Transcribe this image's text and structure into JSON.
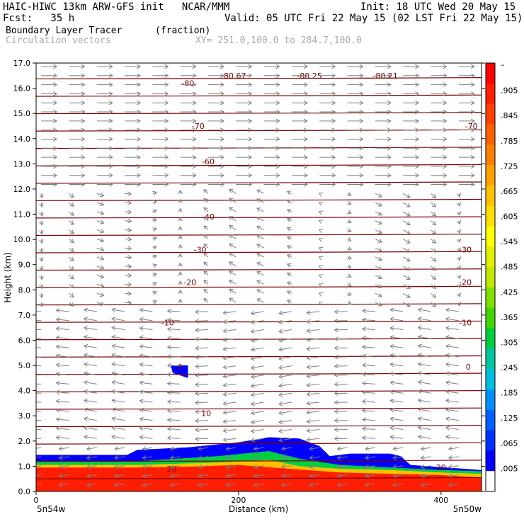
{
  "header": {
    "line1_left": "HAIC-HIWC 13km ARW-GFS init   NCAR/MMM",
    "line1_right": "Init: 18 UTC Wed 20 May 15",
    "line2_left": "Fcst:   35 h",
    "line2_right": "Valid: 05 UTC Fri 22 May 15 (02 LST Fri 22 May 15)",
    "field_name": "Boundary Layer Tracer",
    "field_units": "(fraction)",
    "vector_label": "Circulation vectors",
    "xsec_coords": "XY= 251.0,100.0 to 284.7,100.0"
  },
  "colors": {
    "contour": "#7a0000",
    "vector": "#808080",
    "background": "#ffffff",
    "colorbar": [
      "#ff0000",
      "#ff1e00",
      "#ff4000",
      "#ff6000",
      "#ff8000",
      "#ffa000",
      "#ffc000",
      "#ffe000",
      "#ffff00",
      "#e0f000",
      "#c0e800",
      "#80e000",
      "#40d800",
      "#00d040",
      "#00c8a0",
      "#00c0e0",
      "#0090ff",
      "#0060ff",
      "#0030ff",
      "#0000ff",
      "#ffffff"
    ]
  },
  "chart_data": {
    "type": "heatmap",
    "title": "Boundary Layer Tracer",
    "units": "(fraction)",
    "xlabel": "Distance (km)",
    "ylabel": "Height (km)",
    "xlim": [
      0,
      440
    ],
    "ylim": [
      0,
      17
    ],
    "x_ticks": [
      "0",
      "200",
      "400"
    ],
    "y_ticks": [
      "0.0",
      "1.0",
      "2.0",
      "3.0",
      "4.0",
      "5.0",
      "6.0",
      "7.0",
      "8.0",
      "9.0",
      "10.0",
      "11.0",
      "12.0",
      "13.0",
      "14.0",
      "15.0",
      "16.0",
      "17.0"
    ],
    "x_end_labels": [
      "5n54w",
      "5n50w"
    ],
    "colorbar_labels": [
      ".005",
      ".065",
      ".125",
      ".185",
      ".245",
      ".305",
      ".365",
      ".425",
      ".485",
      ".545",
      ".605",
      ".665",
      ".725",
      ".785",
      ".845",
      ".905"
    ],
    "colorbar_top_label": "–",
    "tracer_regions": [
      {
        "value": 0.95,
        "x": [
          0,
          50,
          100,
          150,
          200,
          250,
          300,
          350,
          400,
          440
        ],
        "top_km": [
          0.95,
          0.95,
          0.95,
          0.98,
          1.05,
          0.9,
          0.75,
          0.7,
          0.65,
          0.55
        ]
      },
      {
        "value": 0.7,
        "x": [
          0,
          100,
          180,
          230,
          260,
          300,
          350,
          400,
          440
        ],
        "top_km": [
          1.05,
          1.05,
          1.15,
          1.25,
          1.0,
          0.9,
          0.85,
          0.75,
          0.7
        ]
      },
      {
        "value": 0.35,
        "x": [
          0,
          100,
          180,
          230,
          260,
          300,
          350,
          400,
          440
        ],
        "top_km": [
          1.2,
          1.2,
          1.4,
          1.6,
          1.3,
          1.05,
          0.95,
          0.85,
          0.8
        ]
      },
      {
        "value": 0.05,
        "x": [
          0,
          90,
          100,
          150,
          200,
          230,
          260,
          280,
          290,
          310,
          350,
          360,
          370,
          440
        ],
        "top_km": [
          1.45,
          1.45,
          1.65,
          1.75,
          1.95,
          2.15,
          2.1,
          1.8,
          1.4,
          1.5,
          1.5,
          1.4,
          1.05,
          0.85
        ]
      }
    ],
    "tracer_blob": {
      "value": 0.02,
      "x_km": [
        133,
        150
      ],
      "z_km": [
        4.5,
        5.0
      ]
    },
    "temperature_contours": [
      {
        "label": "20",
        "x_km": 134,
        "z_km": 0.9
      },
      {
        "label": "20",
        "x_km": 400,
        "z_km": 0.95
      },
      {
        "label": "10",
        "x_km": 168,
        "z_km": 3.1
      },
      {
        "label": "0",
        "x_km": 142,
        "z_km": 4.95
      },
      {
        "label": "0",
        "x_km": 427,
        "z_km": 4.95
      },
      {
        "label": "-10",
        "x_km": 130,
        "z_km": 6.7
      },
      {
        "label": "-10",
        "x_km": 424,
        "z_km": 6.7
      },
      {
        "label": "-20",
        "x_km": 152,
        "z_km": 8.3
      },
      {
        "label": "-20",
        "x_km": 424,
        "z_km": 8.3
      },
      {
        "label": "-30",
        "x_km": 162,
        "z_km": 9.6
      },
      {
        "label": "-30",
        "x_km": 424,
        "z_km": 9.6
      },
      {
        "label": "-40",
        "x_km": 170,
        "z_km": 10.9
      },
      {
        "label": "-60",
        "x_km": 170,
        "z_km": 13.1
      },
      {
        "label": "-70",
        "x_km": 160,
        "z_km": 14.5
      },
      {
        "label": "-70",
        "x_km": 430,
        "z_km": 14.5
      },
      {
        "label": "-80",
        "x_km": 150,
        "z_km": 16.2
      },
      {
        "label": "-80.67",
        "x_km": 195,
        "z_km": 16.5
      },
      {
        "label": "-80.25",
        "x_km": 270,
        "z_km": 16.5
      },
      {
        "label": "-80.21",
        "x_km": 345,
        "z_km": 16.5
      }
    ]
  }
}
